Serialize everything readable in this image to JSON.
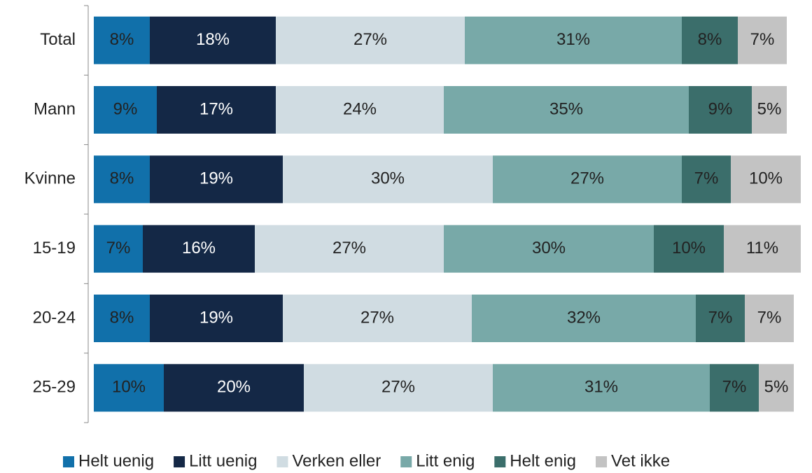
{
  "chart_data": {
    "type": "stacked-bar-horizontal",
    "categories": [
      "Total",
      "Mann",
      "Kvinne",
      "15-19",
      "20-24",
      "25-29"
    ],
    "xlim": [
      0,
      100
    ],
    "legend": "bottom",
    "series": [
      {
        "name": "Helt uenig",
        "color": "#1170aa",
        "values": [
          8,
          9,
          8,
          7,
          8,
          10
        ],
        "value_labels": [
          "8%",
          "9%",
          "8%",
          "7%",
          "8%",
          "10%"
        ]
      },
      {
        "name": "Litt uenig",
        "color": "#142846",
        "values": [
          18,
          17,
          19,
          16,
          19,
          20
        ],
        "value_labels": [
          "18%",
          "17%",
          "19%",
          "16%",
          "19%",
          "20%"
        ]
      },
      {
        "name": "Verken eller",
        "color": "#d0dce2",
        "values": [
          27,
          24,
          30,
          27,
          27,
          27
        ],
        "value_labels": [
          "27%",
          "24%",
          "30%",
          "27%",
          "27%",
          "27%"
        ]
      },
      {
        "name": "Litt enig",
        "color": "#78a9a8",
        "values": [
          31,
          35,
          27,
          30,
          32,
          31
        ],
        "value_labels": [
          "31%",
          "35%",
          "27%",
          "30%",
          "32%",
          "31%"
        ]
      },
      {
        "name": "Helt enig",
        "color": "#3b6e6b",
        "values": [
          8,
          9,
          7,
          10,
          7,
          7
        ],
        "value_labels": [
          "8%",
          "9%",
          "7%",
          "10%",
          "7%",
          "7%"
        ]
      },
      {
        "name": "Vet ikke",
        "color": "#c3c3c3",
        "values": [
          7,
          5,
          10,
          11,
          7,
          5
        ],
        "value_labels": [
          "7%",
          "5%",
          "10%",
          "11%",
          "7%",
          "5%"
        ]
      }
    ]
  }
}
